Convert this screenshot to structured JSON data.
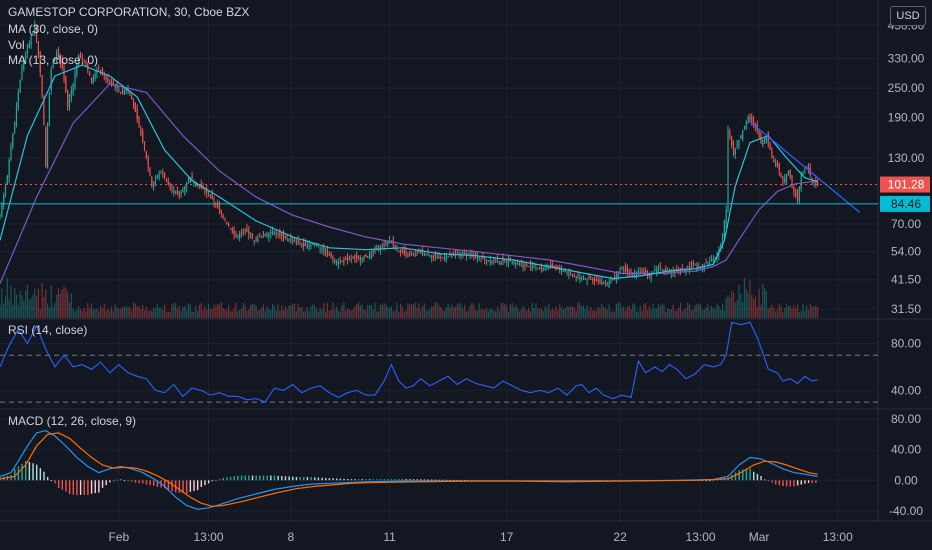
{
  "header": {
    "title": "GAMESTOP CORPORATION, 30, Cboe BZX",
    "ma30": "MA (30, close, 0)",
    "vol": "Vol",
    "ma13": "MA (13, close, 0)",
    "currency": "USD"
  },
  "panes": {
    "rsi_label": "RSI (14, close)",
    "macd_label": "MACD (12, 26, close, 9)"
  },
  "colors": {
    "background": "#131722",
    "up": "#26a69a",
    "down": "#ef5350",
    "ma30": "#7e57c2",
    "ma13": "#26c6da",
    "rsi": "#2962ff",
    "macd": "#2196f3",
    "signal": "#ff6d00",
    "support": "#00bcd4",
    "last_price_line": "#ef5350"
  },
  "chart_data": [
    {
      "type": "candlestick",
      "pane": "price",
      "scale": "log",
      "y_ticks": [
        "450.00",
        "330.00",
        "250.00",
        "190.00",
        "130.00",
        "70.00",
        "54.00",
        "41.50",
        "31.50"
      ],
      "y_tick_values": [
        450,
        330,
        250,
        190,
        130,
        70,
        54,
        41.5,
        31.5
      ],
      "ylim": [
        29,
        560
      ],
      "x_ticks": [
        "Feb",
        "13:00",
        "8",
        "11",
        "17",
        "22",
        "13:00",
        "Mar",
        "13:00"
      ],
      "x_tick_bars": [
        65,
        114,
        159,
        213,
        277,
        339,
        383,
        415,
        458
      ],
      "last_price": 101.28,
      "last_price_label": "101.28",
      "support_level": 84.46,
      "support_label": "84.46",
      "close_path": [
        [
          0,
          75
        ],
        [
          4,
          110
        ],
        [
          8,
          180
        ],
        [
          12,
          300
        ],
        [
          16,
          380
        ],
        [
          19,
          450
        ],
        [
          22,
          290
        ],
        [
          25,
          120
        ],
        [
          28,
          300
        ],
        [
          31,
          350
        ],
        [
          34,
          300
        ],
        [
          37,
          210
        ],
        [
          40,
          260
        ],
        [
          43,
          340
        ],
        [
          46,
          320
        ],
        [
          50,
          270
        ],
        [
          54,
          300
        ],
        [
          58,
          270
        ],
        [
          62,
          260
        ],
        [
          66,
          240
        ],
        [
          70,
          250
        ],
        [
          74,
          200
        ],
        [
          78,
          150
        ],
        [
          83,
          100
        ],
        [
          88,
          115
        ],
        [
          93,
          98
        ],
        [
          98,
          92
        ],
        [
          104,
          108
        ],
        [
          109,
          100
        ],
        [
          114,
          92
        ],
        [
          119,
          82
        ],
        [
          124,
          70
        ],
        [
          129,
          62
        ],
        [
          134,
          66
        ],
        [
          139,
          60
        ],
        [
          144,
          63
        ],
        [
          149,
          65
        ],
        [
          155,
          62
        ],
        [
          160,
          60
        ],
        [
          166,
          57
        ],
        [
          172,
          58
        ],
        [
          178,
          54
        ],
        [
          184,
          49
        ],
        [
          190,
          50
        ],
        [
          196,
          51
        ],
        [
          202,
          52
        ],
        [
          208,
          57
        ],
        [
          213,
          60
        ],
        [
          218,
          54
        ],
        [
          224,
          52
        ],
        [
          230,
          54
        ],
        [
          236,
          52
        ],
        [
          242,
          51
        ],
        [
          248,
          52
        ],
        [
          254,
          53
        ],
        [
          260,
          52
        ],
        [
          266,
          50
        ],
        [
          272,
          49
        ],
        [
          278,
          50
        ],
        [
          284,
          48
        ],
        [
          290,
          47
        ],
        [
          296,
          46
        ],
        [
          302,
          47
        ],
        [
          308,
          45
        ],
        [
          314,
          43
        ],
        [
          320,
          42
        ],
        [
          326,
          41
        ],
        [
          332,
          40
        ],
        [
          336,
          42
        ],
        [
          340,
          46
        ],
        [
          345,
          44
        ],
        [
          350,
          45
        ],
        [
          355,
          43
        ],
        [
          360,
          47
        ],
        [
          365,
          44
        ],
        [
          370,
          45
        ],
        [
          375,
          46
        ],
        [
          379,
          48
        ],
        [
          383,
          47
        ],
        [
          387,
          49
        ],
        [
          391,
          51
        ],
        [
          394,
          56
        ],
        [
          397,
          80
        ],
        [
          398,
          170
        ],
        [
          401,
          135
        ],
        [
          405,
          160
        ],
        [
          409,
          190
        ],
        [
          413,
          175
        ],
        [
          416,
          150
        ],
        [
          419,
          160
        ],
        [
          422,
          130
        ],
        [
          425,
          120
        ],
        [
          428,
          105
        ],
        [
          431,
          115
        ],
        [
          434,
          95
        ],
        [
          436,
          88
        ],
        [
          438,
          110
        ],
        [
          441,
          120
        ],
        [
          444,
          105
        ],
        [
          447,
          101
        ]
      ],
      "ma_30": [
        [
          0,
          40
        ],
        [
          20,
          90
        ],
        [
          40,
          180
        ],
        [
          60,
          260
        ],
        [
          80,
          240
        ],
        [
          100,
          160
        ],
        [
          120,
          115
        ],
        [
          140,
          90
        ],
        [
          160,
          76
        ],
        [
          180,
          68
        ],
        [
          200,
          62
        ],
        [
          220,
          58
        ],
        [
          240,
          56
        ],
        [
          260,
          54
        ],
        [
          280,
          52
        ],
        [
          300,
          50
        ],
        [
          320,
          47
        ],
        [
          340,
          44
        ],
        [
          360,
          44
        ],
        [
          380,
          45
        ],
        [
          390,
          47
        ],
        [
          397,
          50
        ],
        [
          405,
          62
        ],
        [
          415,
          80
        ],
        [
          425,
          95
        ],
        [
          435,
          102
        ],
        [
          447,
          105
        ]
      ],
      "ma_13": [
        [
          0,
          60
        ],
        [
          15,
          160
        ],
        [
          30,
          280
        ],
        [
          45,
          310
        ],
        [
          60,
          280
        ],
        [
          75,
          230
        ],
        [
          90,
          140
        ],
        [
          105,
          105
        ],
        [
          120,
          90
        ],
        [
          140,
          72
        ],
        [
          160,
          62
        ],
        [
          180,
          56
        ],
        [
          200,
          55
        ],
        [
          220,
          56
        ],
        [
          240,
          53
        ],
        [
          260,
          52
        ],
        [
          280,
          50
        ],
        [
          300,
          47
        ],
        [
          320,
          44
        ],
        [
          335,
          42
        ],
        [
          350,
          43
        ],
        [
          365,
          45
        ],
        [
          380,
          46
        ],
        [
          390,
          48
        ],
        [
          396,
          60
        ],
        [
          402,
          100
        ],
        [
          410,
          150
        ],
        [
          420,
          160
        ],
        [
          430,
          130
        ],
        [
          440,
          108
        ],
        [
          447,
          104
        ]
      ],
      "trendline": [
        [
          409,
          185
        ],
        [
          470,
          78
        ]
      ],
      "volume_max_note": "volume bars rendered at bottom of price pane"
    },
    {
      "type": "line",
      "pane": "rsi",
      "y_ticks": [
        "80.00",
        "40.00"
      ],
      "y_tick_values": [
        80,
        40
      ],
      "ylim": [
        25,
        100
      ],
      "overbought": 70,
      "oversold": 30,
      "values": [
        [
          0,
          60
        ],
        [
          5,
          78
        ],
        [
          10,
          92
        ],
        [
          15,
          80
        ],
        [
          20,
          95
        ],
        [
          25,
          75
        ],
        [
          30,
          60
        ],
        [
          35,
          70
        ],
        [
          40,
          60
        ],
        [
          45,
          62
        ],
        [
          50,
          58
        ],
        [
          55,
          64
        ],
        [
          60,
          55
        ],
        [
          65,
          62
        ],
        [
          70,
          55
        ],
        [
          75,
          52
        ],
        [
          80,
          50
        ],
        [
          85,
          40
        ],
        [
          90,
          38
        ],
        [
          95,
          45
        ],
        [
          100,
          35
        ],
        [
          105,
          42
        ],
        [
          110,
          40
        ],
        [
          115,
          36
        ],
        [
          120,
          38
        ],
        [
          125,
          35
        ],
        [
          130,
          35
        ],
        [
          135,
          32
        ],
        [
          140,
          33
        ],
        [
          145,
          30
        ],
        [
          150,
          42
        ],
        [
          155,
          40
        ],
        [
          160,
          45
        ],
        [
          165,
          38
        ],
        [
          170,
          42
        ],
        [
          175,
          44
        ],
        [
          180,
          38
        ],
        [
          185,
          34
        ],
        [
          190,
          38
        ],
        [
          195,
          40
        ],
        [
          200,
          36
        ],
        [
          205,
          36
        ],
        [
          210,
          48
        ],
        [
          214,
          62
        ],
        [
          218,
          48
        ],
        [
          222,
          42
        ],
        [
          226,
          44
        ],
        [
          230,
          50
        ],
        [
          235,
          44
        ],
        [
          240,
          48
        ],
        [
          245,
          52
        ],
        [
          250,
          45
        ],
        [
          255,
          50
        ],
        [
          260,
          46
        ],
        [
          265,
          44
        ],
        [
          270,
          42
        ],
        [
          275,
          48
        ],
        [
          280,
          44
        ],
        [
          285,
          40
        ],
        [
          290,
          38
        ],
        [
          295,
          40
        ],
        [
          300,
          38
        ],
        [
          305,
          42
        ],
        [
          310,
          36
        ],
        [
          315,
          44
        ],
        [
          318,
          45
        ],
        [
          322,
          38
        ],
        [
          326,
          42
        ],
        [
          330,
          36
        ],
        [
          335,
          33
        ],
        [
          340,
          36
        ],
        [
          345,
          34
        ],
        [
          349,
          65
        ],
        [
          353,
          55
        ],
        [
          358,
          60
        ],
        [
          362,
          56
        ],
        [
          366,
          62
        ],
        [
          370,
          58
        ],
        [
          375,
          50
        ],
        [
          380,
          54
        ],
        [
          385,
          62
        ],
        [
          390,
          60
        ],
        [
          394,
          62
        ],
        [
          397,
          70
        ],
        [
          400,
          98
        ],
        [
          405,
          96
        ],
        [
          410,
          98
        ],
        [
          414,
          85
        ],
        [
          417,
          72
        ],
        [
          420,
          58
        ],
        [
          425,
          55
        ],
        [
          428,
          48
        ],
        [
          432,
          50
        ],
        [
          436,
          46
        ],
        [
          440,
          52
        ],
        [
          444,
          48
        ],
        [
          447,
          49
        ]
      ]
    },
    {
      "type": "line",
      "pane": "macd",
      "y_ticks": [
        "80.00",
        "40.00",
        "0.00",
        "-40.00"
      ],
      "y_tick_values": [
        80,
        40,
        0,
        -40
      ],
      "ylim": [
        -52,
        92
      ],
      "macd": [
        [
          0,
          5
        ],
        [
          6,
          10
        ],
        [
          10,
          25
        ],
        [
          15,
          45
        ],
        [
          20,
          62
        ],
        [
          25,
          65
        ],
        [
          30,
          58
        ],
        [
          36,
          45
        ],
        [
          42,
          30
        ],
        [
          48,
          18
        ],
        [
          54,
          10
        ],
        [
          60,
          15
        ],
        [
          66,
          18
        ],
        [
          72,
          15
        ],
        [
          78,
          10
        ],
        [
          84,
          2
        ],
        [
          90,
          -8
        ],
        [
          96,
          -22
        ],
        [
          102,
          -33
        ],
        [
          108,
          -38
        ],
        [
          114,
          -36
        ],
        [
          120,
          -32
        ],
        [
          130,
          -24
        ],
        [
          140,
          -18
        ],
        [
          150,
          -12
        ],
        [
          160,
          -8
        ],
        [
          170,
          -5
        ],
        [
          180,
          -4
        ],
        [
          190,
          -3
        ],
        [
          200,
          -2
        ],
        [
          220,
          -1
        ],
        [
          250,
          -1
        ],
        [
          280,
          -1
        ],
        [
          310,
          -2
        ],
        [
          340,
          -1
        ],
        [
          370,
          0
        ],
        [
          390,
          1
        ],
        [
          398,
          5
        ],
        [
          404,
          20
        ],
        [
          410,
          30
        ],
        [
          416,
          28
        ],
        [
          422,
          22
        ],
        [
          428,
          15
        ],
        [
          434,
          10
        ],
        [
          440,
          8
        ],
        [
          447,
          5
        ]
      ],
      "signal": [
        [
          0,
          2
        ],
        [
          8,
          5
        ],
        [
          14,
          20
        ],
        [
          20,
          45
        ],
        [
          26,
          60
        ],
        [
          32,
          62
        ],
        [
          38,
          55
        ],
        [
          44,
          42
        ],
        [
          50,
          30
        ],
        [
          56,
          20
        ],
        [
          62,
          16
        ],
        [
          68,
          17
        ],
        [
          74,
          16
        ],
        [
          80,
          12
        ],
        [
          86,
          6
        ],
        [
          92,
          -2
        ],
        [
          98,
          -12
        ],
        [
          104,
          -22
        ],
        [
          110,
          -30
        ],
        [
          116,
          -34
        ],
        [
          122,
          -33
        ],
        [
          132,
          -28
        ],
        [
          142,
          -22
        ],
        [
          152,
          -16
        ],
        [
          162,
          -11
        ],
        [
          172,
          -8
        ],
        [
          182,
          -6
        ],
        [
          192,
          -4
        ],
        [
          202,
          -3
        ],
        [
          230,
          -2
        ],
        [
          260,
          -1
        ],
        [
          300,
          -1
        ],
        [
          340,
          -1
        ],
        [
          380,
          0
        ],
        [
          398,
          2
        ],
        [
          405,
          10
        ],
        [
          412,
          20
        ],
        [
          418,
          25
        ],
        [
          424,
          24
        ],
        [
          430,
          20
        ],
        [
          436,
          15
        ],
        [
          442,
          10
        ],
        [
          447,
          8
        ]
      ]
    }
  ]
}
